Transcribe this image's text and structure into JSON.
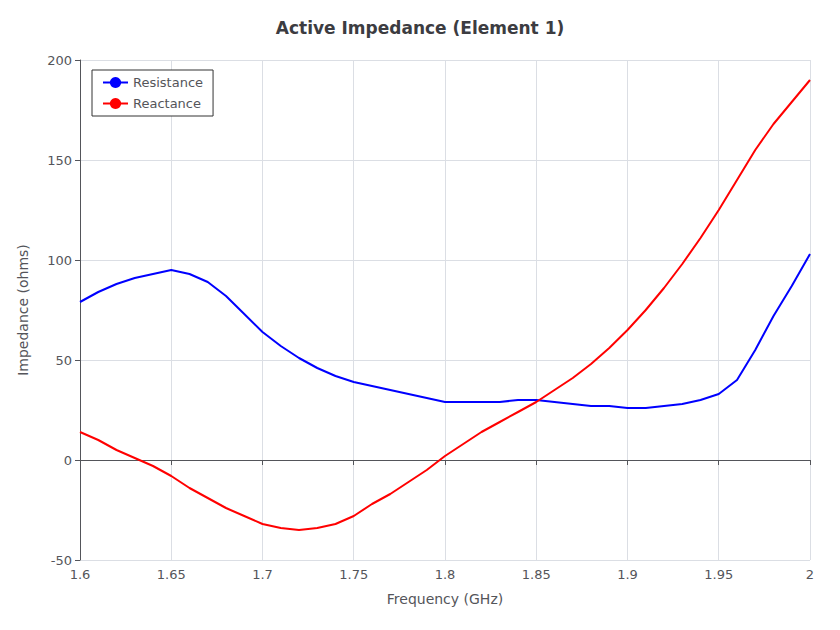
{
  "chart_data": {
    "type": "line",
    "title": "Active Impedance (Element 1)",
    "x_label": "Frequency (GHz)",
    "y_label": "Impedance (ohms)",
    "x": [
      1.6,
      1.61,
      1.62,
      1.63,
      1.64,
      1.65,
      1.66,
      1.67,
      1.68,
      1.69,
      1.7,
      1.71,
      1.72,
      1.73,
      1.74,
      1.75,
      1.76,
      1.77,
      1.78,
      1.79,
      1.8,
      1.81,
      1.82,
      1.83,
      1.84,
      1.85,
      1.86,
      1.87,
      1.88,
      1.89,
      1.9,
      1.91,
      1.92,
      1.93,
      1.94,
      1.95,
      1.96,
      1.97,
      1.98,
      1.99,
      2.0
    ],
    "series": [
      {
        "name": "Resistance",
        "color": "#0000FF",
        "values": [
          79,
          84,
          88,
          91,
          93,
          95,
          93,
          89,
          82,
          73,
          64,
          57,
          51,
          46,
          42,
          39,
          37,
          35,
          33,
          31,
          29,
          29,
          29,
          29,
          30,
          30,
          29,
          28,
          27,
          27,
          26,
          26,
          27,
          28,
          30,
          33,
          40,
          55,
          72,
          87,
          103
        ]
      },
      {
        "name": "Reactance",
        "color": "#FF0000",
        "values": [
          14,
          10,
          5,
          1,
          -3,
          -8,
          -14,
          -19,
          -24,
          -28,
          -32,
          -34,
          -35,
          -34,
          -32,
          -28,
          -22,
          -17,
          -11,
          -5,
          2,
          8,
          14,
          19,
          24,
          29,
          35,
          41,
          48,
          56,
          65,
          75,
          86,
          98,
          111,
          125,
          140,
          155,
          168,
          179,
          190
        ]
      }
    ],
    "xlim": [
      1.6,
      2.0
    ],
    "ylim": [
      -50,
      200
    ],
    "xticks": [
      1.6,
      1.65,
      1.7,
      1.75,
      1.8,
      1.85,
      1.9,
      1.95,
      2
    ],
    "yticks": [
      -50,
      0,
      50,
      100,
      150,
      200
    ],
    "grid": true,
    "legend": "upper left"
  }
}
